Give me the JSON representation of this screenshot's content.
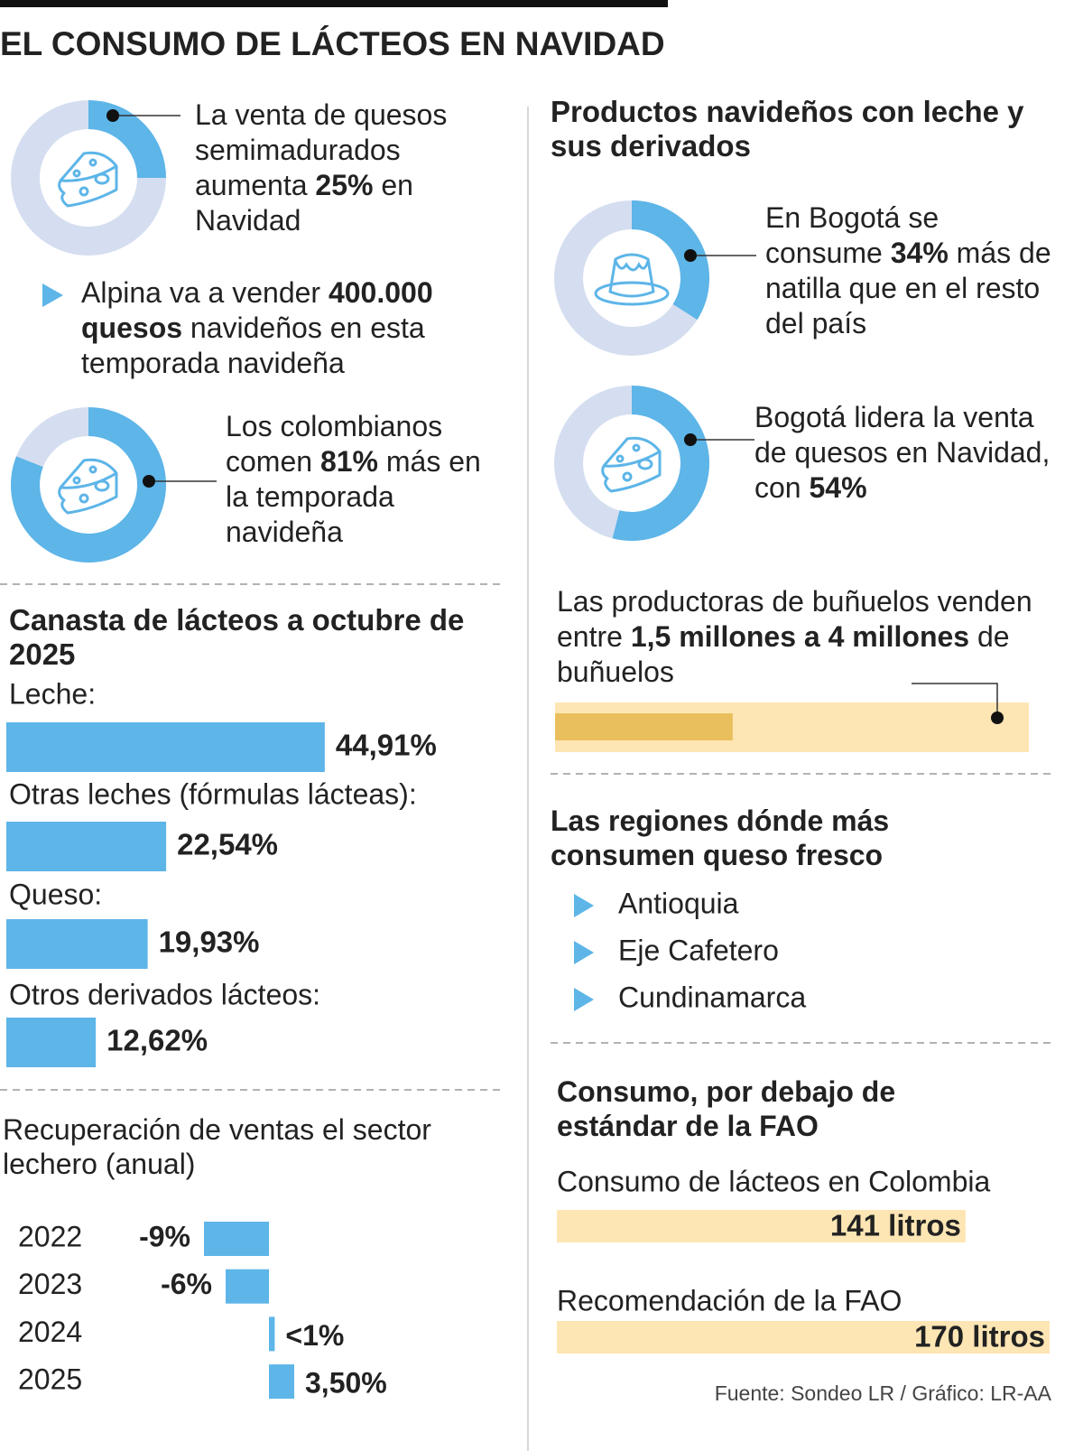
{
  "title": "EL CONSUMO DE LÁCTEOS EN NAVIDAD",
  "colors": {
    "accent": "#5db5e8",
    "track": "#d5def0"
  },
  "donuts": [
    {
      "pre": "La venta de quesos semimadurados aumenta ",
      "value": 25,
      "value_label": "25%",
      "post": " en Navidad"
    },
    {
      "pre": "Los colombianos comen ",
      "value": 81,
      "value_label": "81%",
      "post": " más en la temporada navideña"
    },
    {
      "pre": "En Bogotá se consume ",
      "value": 34,
      "value_label": "34%",
      "post": " más de natilla que en el resto del país"
    },
    {
      "pre": "Bogotá lidera la venta de quesos en Navidad, con ",
      "value": 54,
      "value_label": "54%"
    }
  ],
  "alpina": {
    "pre": "Alpina va a vender ",
    "bold": "400.000 quesos",
    "post": " navideños en esta temporada navideña"
  },
  "products_title": "Productos navideños con leche y sus derivados",
  "bunuelos": {
    "pre": "Las productoras de buñuelos venden entre ",
    "min": 1.5,
    "min_label": "1,5 millones a",
    "max": 4,
    "max_label": "4 millones",
    "post": " de buñuelos",
    "xlim": [
      0,
      4
    ],
    "color": "#e8bf5c",
    "track": "#fde6b4"
  },
  "regions": {
    "title": "Las regiones dónde más consumen queso fresco",
    "items": [
      "Antioquia",
      "Eje Cafetero",
      "Cundinamarca"
    ]
  },
  "chart_data": [
    {
      "type": "hbar",
      "title": "Canasta de lácteos a octubre de 2025",
      "categories": [
        "Leche:",
        "Otras leches (fórmulas lácteas):",
        "Queso:",
        "Otros derivados lácteos:"
      ],
      "values": [
        44.91,
        22.54,
        19.93,
        12.62
      ],
      "value_labels": [
        "44,91%",
        "22,54%",
        "19,93%",
        "12,62%"
      ],
      "xlim": [
        0,
        70
      ],
      "color": "#5db5e8"
    },
    {
      "type": "diverging",
      "title": "Recuperación de ventas el sector lechero (anual)",
      "categories": [
        "2022",
        "2023",
        "2024",
        "2025"
      ],
      "values": [
        -9,
        -6,
        0.8,
        3.5
      ],
      "value_labels": [
        "-9%",
        "-6%",
        "<1%",
        "3,50%"
      ],
      "xlim": [
        -10,
        10
      ],
      "color": "#5db5e8"
    },
    {
      "type": "fao",
      "title": "Consumo, por debajo de estándar de la FAO",
      "categories": [
        "Consumo de lácteos en Colombia",
        "Recomendación de la FAO"
      ],
      "values": [
        141,
        170
      ],
      "value_labels": [
        "141 litros",
        "170 litros"
      ],
      "xlim": [
        0,
        170
      ],
      "color": "#fde6b4"
    }
  ],
  "source": "Fuente: Sondeo LR / Gráfico: LR-AA"
}
